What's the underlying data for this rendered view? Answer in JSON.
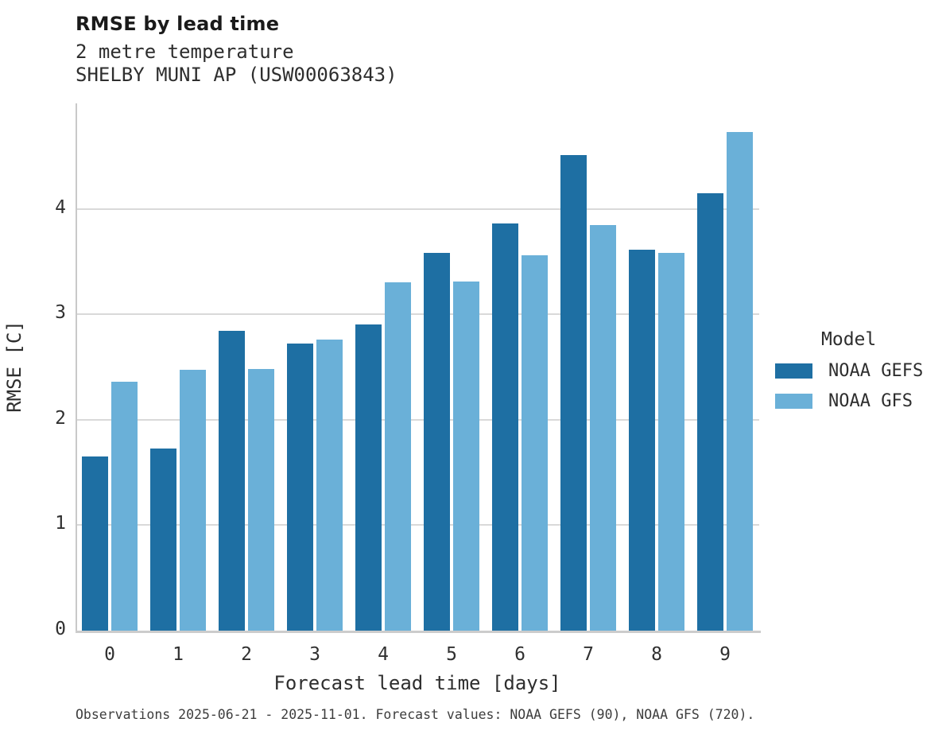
{
  "header": {
    "title": "RMSE by lead time",
    "subtitle1": "2 metre temperature",
    "subtitle2": "SHELBY MUNI AP (USW00063843)"
  },
  "legend": {
    "title": "Model",
    "entries": [
      {
        "label": "NOAA GEFS",
        "color": "#1e6fa3"
      },
      {
        "label": "NOAA GFS",
        "color": "#6ab0d8"
      }
    ]
  },
  "footer": {
    "note": "Observations 2025-06-21 - 2025-11-01. Forecast values: NOAA GEFS (90), NOAA GFS (720)."
  },
  "chart_data": {
    "type": "bar",
    "title": "RMSE by lead time",
    "subtitle": [
      "2 metre temperature",
      "SHELBY MUNI AP (USW00063843)"
    ],
    "xlabel": "Forecast lead time [days]",
    "ylabel": "RMSE [C]",
    "categories": [
      "0",
      "1",
      "2",
      "3",
      "4",
      "5",
      "6",
      "7",
      "8",
      "9"
    ],
    "series": [
      {
        "name": "NOAA GEFS",
        "color": "#1e6fa3",
        "values": [
          1.65,
          1.73,
          2.84,
          2.72,
          2.9,
          3.58,
          3.86,
          4.51,
          3.61,
          4.15
        ]
      },
      {
        "name": "NOAA GFS",
        "color": "#6ab0d8",
        "values": [
          2.36,
          2.47,
          2.48,
          2.76,
          3.3,
          3.31,
          3.56,
          3.85,
          3.58,
          4.73
        ]
      }
    ],
    "ylim": [
      0,
      5
    ],
    "yticks": [
      0,
      1,
      2,
      3,
      4
    ],
    "grid": true,
    "legend_title": "Model",
    "legend_position": "right",
    "annotation": "Observations 2025-06-21 - 2025-11-01. Forecast values: NOAA GEFS (90), NOAA GFS (720)."
  }
}
